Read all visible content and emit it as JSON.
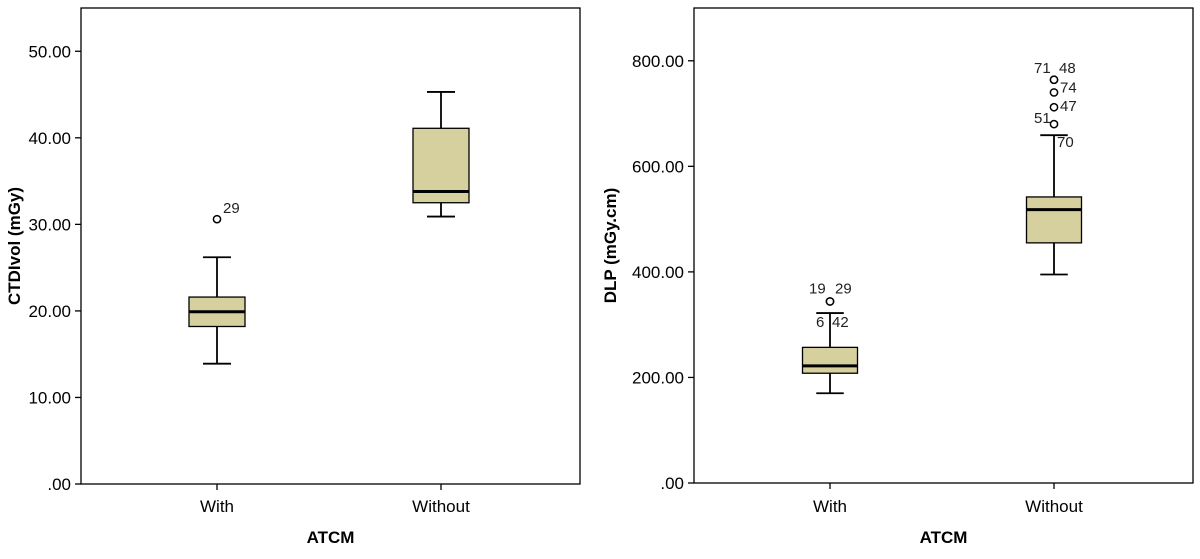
{
  "colors": {
    "box_fill": "#d6d09e",
    "stroke": "#000000",
    "background": "#ffffff"
  },
  "chart_data": [
    {
      "type": "box",
      "xlabel": "ATCM",
      "ylabel": "CTDIvol (mGy)",
      "ylim": [
        0,
        55
      ],
      "yticks": [
        0,
        10,
        20,
        30,
        40,
        50
      ],
      "ytick_labels": [
        ".00",
        "10.00",
        "20.00",
        "30.00",
        "40.00",
        "50.00"
      ],
      "categories": [
        "With",
        "Without"
      ],
      "boxes": [
        {
          "category": "With",
          "whisker_low": 13.9,
          "q1": 18.2,
          "median": 19.9,
          "q3": 21.6,
          "whisker_high": 26.2,
          "outliers": [
            {
              "value": 30.6,
              "label": "29",
              "label_dx": 6,
              "label_dy": -6
            }
          ]
        },
        {
          "category": "Without",
          "whisker_low": 30.9,
          "q1": 32.5,
          "median": 33.8,
          "q3": 41.1,
          "whisker_high": 45.3,
          "outliers": []
        }
      ]
    },
    {
      "type": "box",
      "xlabel": "ATCM",
      "ylabel": "DLP (mGy.cm)",
      "ylim": [
        0,
        900
      ],
      "yticks": [
        0,
        200,
        400,
        600,
        800
      ],
      "ytick_labels": [
        ".00",
        "200.00",
        "400.00",
        "600.00",
        "800.00"
      ],
      "categories": [
        "With",
        "Without"
      ],
      "boxes": [
        {
          "category": "With",
          "whisker_low": 170,
          "q1": 208,
          "median": 222,
          "q3": 257,
          "whisker_high": 322,
          "outliers": [
            {
              "value": 344,
              "label": "19",
              "label_dx": -21,
              "label_dy": -8
            },
            {
              "value": 344,
              "label": "29",
              "label_dx": 5,
              "label_dy": -8
            },
            {
              "value": 322,
              "label": "6",
              "label_dx": -14,
              "label_dy": 14
            },
            {
              "value": 322,
              "label": "42",
              "label_dx": 2,
              "label_dy": 14
            }
          ]
        },
        {
          "category": "Without",
          "whisker_low": 395,
          "q1": 455,
          "median": 518,
          "q3": 542,
          "whisker_high": 659,
          "outliers": [
            {
              "value": 764,
              "label": "71",
              "label_dx": -20,
              "label_dy": -7
            },
            {
              "value": 764,
              "label": "48",
              "label_dx": 5,
              "label_dy": -7
            },
            {
              "value": 740,
              "label": "74",
              "label_dx": 6,
              "label_dy": 0
            },
            {
              "value": 712,
              "label": "47",
              "label_dx": 6,
              "label_dy": 4
            },
            {
              "value": 680,
              "label": "51",
              "label_dx": -20,
              "label_dy": -1
            },
            {
              "value": 659,
              "label": "70",
              "label_dx": 3,
              "label_dy": 12
            }
          ]
        }
      ]
    }
  ]
}
